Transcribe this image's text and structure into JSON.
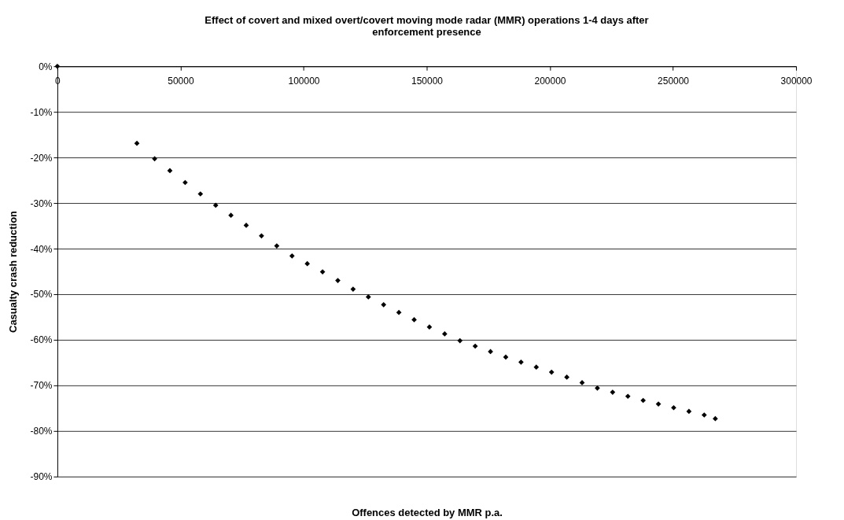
{
  "chart_data": {
    "type": "scatter",
    "title": "Effect of covert and mixed overt/covert moving mode radar (MMR) operations 1-4 days after\nenforcement presence",
    "xlabel": "Offences detected by MMR p.a.",
    "ylabel": "Casualty crash reduction",
    "x": [
      0,
      32300,
      39500,
      45700,
      51900,
      58100,
      64300,
      70500,
      76700,
      82900,
      89100,
      95300,
      101500,
      107700,
      113900,
      120100,
      126300,
      132500,
      138700,
      144900,
      151100,
      157300,
      163500,
      169700,
      175900,
      182100,
      188300,
      194500,
      200700,
      206900,
      213100,
      219300,
      225500,
      231700,
      237900,
      244100,
      250300,
      256500,
      262700,
      267200
    ],
    "series": [
      {
        "color": "#000000",
        "values": [
          0,
          -16.9,
          -20.3,
          -22.9,
          -25.5,
          -28.0,
          -30.5,
          -32.7,
          -34.9,
          -37.2,
          -39.4,
          -41.6,
          -43.3,
          -45.1,
          -47.0,
          -48.9,
          -50.6,
          -52.3,
          -54.0,
          -55.6,
          -57.2,
          -58.7,
          -60.2,
          -61.4,
          -62.6,
          -63.8,
          -64.9,
          -66.0,
          -67.1,
          -68.2,
          -69.4,
          -70.6,
          -71.5,
          -72.4,
          -73.3,
          -74.1,
          -74.9,
          -75.7,
          -76.5,
          -77.3
        ]
      }
    ],
    "xlim": [
      0,
      300000
    ],
    "xticks": [
      0,
      50000,
      100000,
      150000,
      200000,
      250000,
      300000
    ],
    "ylim": [
      -90,
      0
    ],
    "yticks": [
      {
        "value": 0,
        "label": "0%"
      },
      {
        "value": -10,
        "label": "-10%"
      },
      {
        "value": -20,
        "label": "-20%"
      },
      {
        "value": -30,
        "label": "-30%"
      },
      {
        "value": -40,
        "label": "-40%"
      },
      {
        "value": -50,
        "label": "-50%"
      },
      {
        "value": -60,
        "label": "-60%"
      },
      {
        "value": -70,
        "label": "-70%"
      },
      {
        "value": -80,
        "label": "-80%"
      },
      {
        "value": -90,
        "label": "-90%"
      }
    ],
    "grid": "y",
    "marker": "diamond",
    "legend": false
  }
}
